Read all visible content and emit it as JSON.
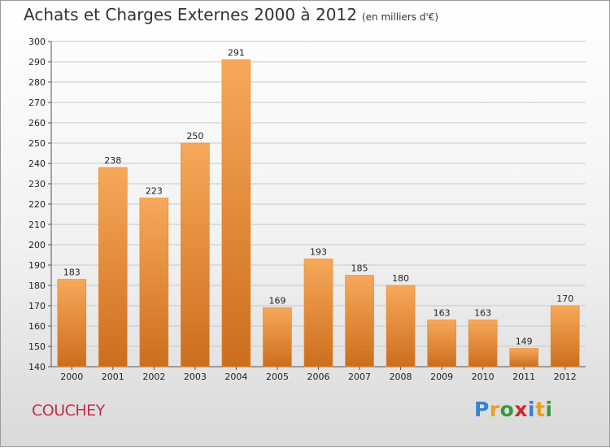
{
  "title": "Achats et Charges Externes 2000 à 2012",
  "subtitle": "(en milliers d'€)",
  "town": "COUCHEY",
  "logo": {
    "text": "Proxiti",
    "letters": [
      {
        "ch": "P",
        "color": "#3a7fd0"
      },
      {
        "ch": "r",
        "color": "#e8a020"
      },
      {
        "ch": "o",
        "color": "#3a9a3a"
      },
      {
        "ch": "x",
        "color": "#d02830"
      },
      {
        "ch": "i",
        "color": "#3a7fd0"
      },
      {
        "ch": "t",
        "color": "#e8a020"
      },
      {
        "ch": "i",
        "color": "#3a9a3a"
      }
    ]
  },
  "colors": {
    "bar_light": "#f7a85a",
    "bar_dark": "#cc6e1c",
    "bar_edge": "#e58a2e",
    "grid": "#c8c8c8",
    "town": "#c03050"
  },
  "chart_data": {
    "type": "bar",
    "categories": [
      "2000",
      "2001",
      "2002",
      "2003",
      "2004",
      "2005",
      "2006",
      "2007",
      "2008",
      "2009",
      "2010",
      "2011",
      "2012"
    ],
    "values": [
      183,
      238,
      223,
      250,
      291,
      169,
      193,
      185,
      180,
      163,
      163,
      149,
      170
    ],
    "title": "Achats et Charges Externes 2000 à 2012",
    "ylim": [
      140,
      300
    ],
    "yticks": [
      140,
      150,
      160,
      170,
      180,
      190,
      200,
      210,
      220,
      230,
      240,
      250,
      260,
      270,
      280,
      290,
      300
    ],
    "grid": true,
    "data_labels": true
  }
}
